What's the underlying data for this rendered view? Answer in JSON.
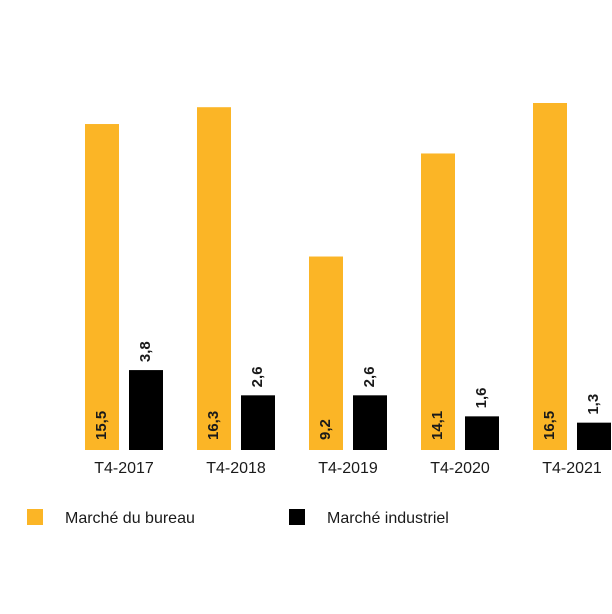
{
  "chart_data": {
    "type": "bar",
    "categories": [
      "T4-2017",
      "T4-2018",
      "T4-2019",
      "T4-2020",
      "T4-2021"
    ],
    "series": [
      {
        "name": "Marché du bureau",
        "color": "#fbb526",
        "values": [
          15.5,
          16.3,
          9.2,
          14.1,
          16.5
        ],
        "value_labels": [
          "15,5",
          "16,3",
          "9,2",
          "14,1",
          "16,5"
        ]
      },
      {
        "name": "Marché industriel",
        "color": "#000000",
        "values": [
          3.8,
          2.6,
          2.6,
          1.6,
          1.3
        ],
        "value_labels": [
          "3,8",
          "2,6",
          "2,6",
          "1,6",
          "1,3"
        ]
      }
    ]
  }
}
